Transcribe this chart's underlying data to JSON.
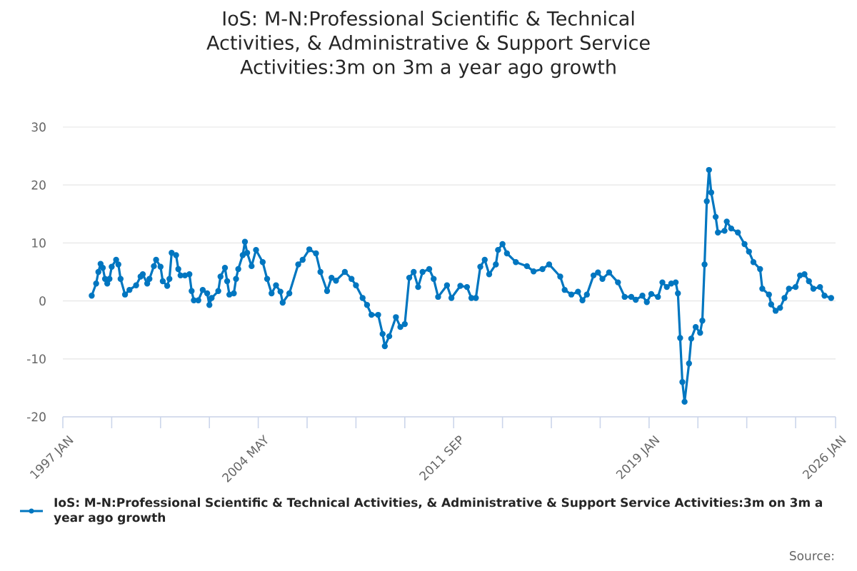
{
  "chart_data": {
    "type": "line",
    "title": "IoS: M-N:Professional Scientific & Technical Activities, & Administrative & Support Service Activities:3m on 3m a year ago growth",
    "x": [
      "1998-02",
      "1998-04",
      "1998-05",
      "1998-06",
      "1998-07",
      "1998-08",
      "1998-09",
      "1998-10",
      "1998-11",
      "1999-01",
      "1999-02",
      "1999-03",
      "1999-05",
      "1999-07",
      "1999-10",
      "1999-12",
      "2000-01",
      "2000-03",
      "2000-04",
      "2000-06",
      "2000-07",
      "2000-09",
      "2000-10",
      "2000-12",
      "2001-01",
      "2001-02",
      "2001-04",
      "2001-05",
      "2001-06",
      "2001-08",
      "2001-10",
      "2001-11",
      "2001-12",
      "2002-02",
      "2002-04",
      "2002-06",
      "2002-07",
      "2002-08",
      "2002-11",
      "2002-12",
      "2003-02",
      "2003-03",
      "2003-04",
      "2003-06",
      "2003-07",
      "2003-08",
      "2003-10",
      "2003-11",
      "2003-12",
      "2004-02",
      "2004-04",
      "2004-07",
      "2004-09",
      "2004-11",
      "2005-01",
      "2005-03",
      "2005-04",
      "2005-07",
      "2005-11",
      "2006-01",
      "2006-04",
      "2006-07",
      "2006-09",
      "2006-12",
      "2007-02",
      "2007-04",
      "2007-08",
      "2007-11",
      "2008-01",
      "2008-04",
      "2008-06",
      "2008-08",
      "2008-11",
      "2009-01",
      "2009-02",
      "2009-04",
      "2009-07",
      "2009-09",
      "2009-11",
      "2010-01",
      "2010-03",
      "2010-05",
      "2010-07",
      "2010-10",
      "2010-12",
      "2011-02",
      "2011-06",
      "2011-08",
      "2011-12",
      "2012-03",
      "2012-05",
      "2012-07",
      "2012-09",
      "2012-11",
      "2013-01",
      "2013-04",
      "2013-05",
      "2013-07",
      "2013-09",
      "2014-01",
      "2014-06",
      "2014-09",
      "2015-01",
      "2015-04",
      "2015-09",
      "2015-11",
      "2016-02",
      "2016-05",
      "2016-07",
      "2016-09",
      "2016-12",
      "2017-02",
      "2017-04",
      "2017-07",
      "2017-11",
      "2018-02",
      "2018-05",
      "2018-07",
      "2018-10",
      "2018-12",
      "2019-02",
      "2019-05",
      "2019-07",
      "2019-09",
      "2019-11",
      "2020-01",
      "2020-02",
      "2020-03",
      "2020-04",
      "2020-05",
      "2020-07",
      "2020-08",
      "2020-10",
      "2020-12",
      "2021-01",
      "2021-02",
      "2021-03",
      "2021-04",
      "2021-05",
      "2021-07",
      "2021-08",
      "2021-11",
      "2021-12",
      "2022-02",
      "2022-05",
      "2022-08",
      "2022-10",
      "2022-12",
      "2023-03",
      "2023-04",
      "2023-07",
      "2023-08",
      "2023-10",
      "2023-12",
      "2024-02",
      "2024-04",
      "2024-07",
      "2024-09",
      "2024-11",
      "2025-01",
      "2025-03",
      "2025-06",
      "2025-08",
      "2025-11"
    ],
    "series": [
      {
        "name": "IoS: M-N:Professional Scientific & Technical Activities, & Administrative & Support Service Activities:3m on 3m a year ago growth",
        "color": "#0076c0",
        "values": [
          0.9,
          3,
          5,
          6.4,
          5.7,
          3.8,
          3,
          3.8,
          5.9,
          7.1,
          6.3,
          3.8,
          1.1,
          1.9,
          2.7,
          4.2,
          4.6,
          3,
          3.8,
          6,
          7.1,
          5.9,
          3.4,
          2.6,
          3.8,
          8.3,
          7.9,
          5.5,
          4.4,
          4.4,
          4.6,
          1.7,
          0.1,
          0.1,
          1.9,
          1.3,
          -0.7,
          0.5,
          1.7,
          4.2,
          5.7,
          3.4,
          1.1,
          1.3,
          3.8,
          5.5,
          7.9,
          10.2,
          8.3,
          6,
          8.8,
          6.7,
          3.8,
          1.3,
          2.7,
          1.6,
          -0.3,
          1.3,
          6.3,
          7.1,
          8.9,
          8.2,
          5,
          1.7,
          4,
          3.5,
          5,
          3.8,
          2.7,
          0.5,
          -0.7,
          -2.4,
          -2.4,
          -5.7,
          -7.8,
          -6.1,
          -2.8,
          -4.5,
          -4,
          4,
          5,
          2.4,
          5,
          5.5,
          3.8,
          0.7,
          2.7,
          0.5,
          2.6,
          2.4,
          0.5,
          0.5,
          5.9,
          7.1,
          4.6,
          6.3,
          8.8,
          9.8,
          8.2,
          6.7,
          6,
          5.1,
          5.5,
          6.3,
          4.2,
          1.9,
          1.1,
          1.6,
          0.1,
          1.1,
          4.4,
          4.9,
          3.8,
          4.9,
          3.2,
          0.7,
          0.7,
          0.2,
          0.9,
          -0.2,
          1.2,
          0.7,
          3.2,
          2.4,
          3,
          3.2,
          1.3,
          -6.4,
          -14,
          -17.4,
          -10.8,
          -6.5,
          -4.5,
          -5.5,
          -3.4,
          6.3,
          17.2,
          22.6,
          18.7,
          14.5,
          11.8,
          12.1,
          13.7,
          12.5,
          11.8,
          9.8,
          8.5,
          6.7,
          5.5,
          2.1,
          1.1,
          -0.6,
          -1.7,
          -1.2,
          0.5,
          2.1,
          2.4,
          4.4,
          4.6,
          3.4,
          2.1,
          2.4,
          0.9,
          0.5
        ]
      }
    ],
    "xlim": [
      "1997-01",
      "2026-01"
    ],
    "xticks": [
      {
        "value": "1997-01",
        "label": "1997 JAN"
      },
      {
        "value": "1998-11",
        "label": null
      },
      {
        "value": "2000-09",
        "label": null
      },
      {
        "value": "2002-07",
        "label": null
      },
      {
        "value": "2004-05",
        "label": "2004 MAY"
      },
      {
        "value": "2006-03",
        "label": null
      },
      {
        "value": "2008-01",
        "label": null
      },
      {
        "value": "2009-11",
        "label": null
      },
      {
        "value": "2011-09",
        "label": "2011 SEP"
      },
      {
        "value": "2013-07",
        "label": null
      },
      {
        "value": "2015-05",
        "label": null
      },
      {
        "value": "2017-03",
        "label": null
      },
      {
        "value": "2019-01",
        "label": "2019 JAN"
      },
      {
        "value": "2020-11",
        "label": null
      },
      {
        "value": "2022-09",
        "label": null
      },
      {
        "value": "2024-07",
        "label": null
      },
      {
        "value": "2026-01",
        "label": "2026 JAN"
      }
    ],
    "ylim": [
      -20,
      30
    ],
    "yticks": [
      -20,
      -10,
      0,
      10,
      20,
      30
    ],
    "grid": "y",
    "legend": "bottom",
    "marker": "circle",
    "line_style": "solid",
    "annotations": [
      "Source:"
    ]
  }
}
